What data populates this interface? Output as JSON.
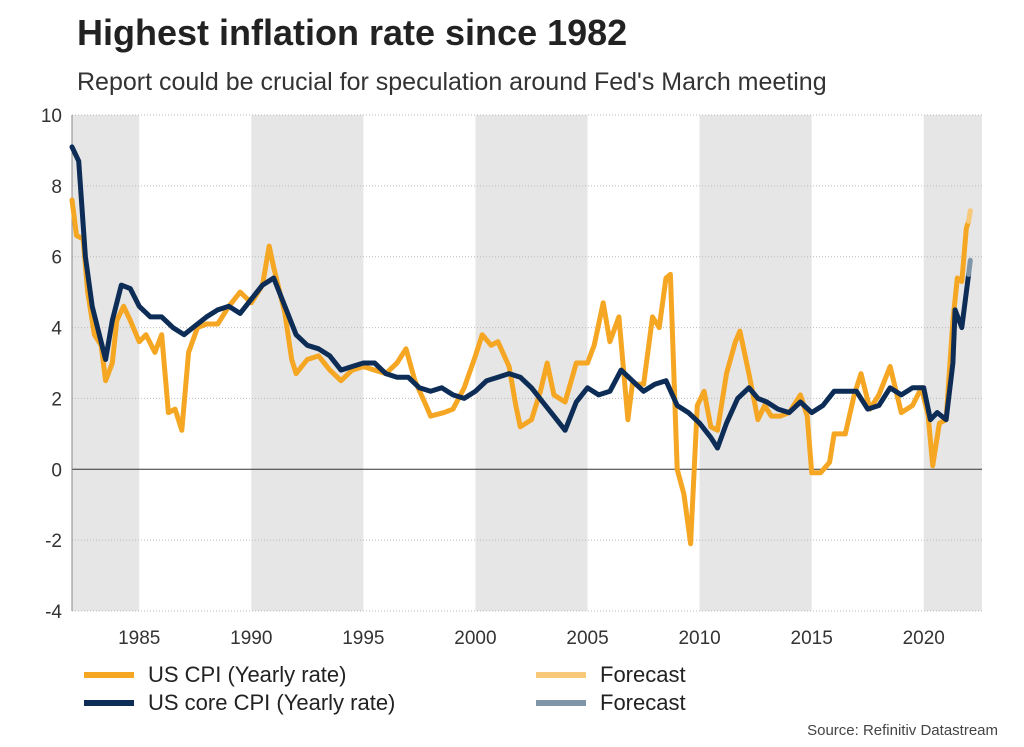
{
  "title": "Highest inflation rate since 1982",
  "subtitle": "Report could be crucial for speculation around Fed's March meeting",
  "source": "Source: Refinitiv Datastream",
  "colors": {
    "cpi": "#f5a623",
    "cpi_forecast": "#f8c979",
    "core": "#0d2d57",
    "core_forecast": "#7f96a8",
    "shade": "#e6e6e6",
    "zero_line": "#333333",
    "grid": "#bbbbbb"
  },
  "legend": [
    {
      "label": "US CPI (Yearly rate)",
      "color_key": "cpi"
    },
    {
      "label": "Forecast",
      "color_key": "cpi_forecast"
    },
    {
      "label": "US core CPI (Yearly rate)",
      "color_key": "core"
    },
    {
      "label": "Forecast",
      "color_key": "core_forecast"
    }
  ],
  "chart_data": {
    "type": "line",
    "xlim": [
      1982.0,
      2022.6
    ],
    "ylim": [
      -4,
      10
    ],
    "x_ticks": [
      1985,
      1990,
      1995,
      2000,
      2005,
      2010,
      2015,
      2020
    ],
    "x_tick_labels": [
      "1985",
      "1990",
      "1995",
      "2000",
      "2005",
      "2010",
      "2015",
      "2020"
    ],
    "y_ticks": [
      -4,
      -2,
      0,
      2,
      4,
      6,
      8,
      10
    ],
    "y_tick_labels": [
      "-4",
      "-2",
      "0",
      "2",
      "4",
      "6",
      "8",
      "10"
    ],
    "shaded_bands": [
      [
        1982.0,
        1985.0
      ],
      [
        1990.0,
        1995.0
      ],
      [
        2000.0,
        2005.0
      ],
      [
        2010.0,
        2015.0
      ],
      [
        2020.0,
        2022.6
      ]
    ],
    "grid": true,
    "series": [
      {
        "name": "US CPI (Yearly rate)",
        "color_key": "cpi",
        "width": 5,
        "points": [
          [
            1982.0,
            7.6
          ],
          [
            1982.2,
            6.6
          ],
          [
            1982.5,
            6.5
          ],
          [
            1982.7,
            5.0
          ],
          [
            1983.0,
            3.8
          ],
          [
            1983.3,
            3.5
          ],
          [
            1983.5,
            2.5
          ],
          [
            1983.8,
            3.0
          ],
          [
            1984.0,
            4.2
          ],
          [
            1984.3,
            4.6
          ],
          [
            1984.6,
            4.2
          ],
          [
            1985.0,
            3.6
          ],
          [
            1985.3,
            3.8
          ],
          [
            1985.7,
            3.3
          ],
          [
            1986.0,
            3.8
          ],
          [
            1986.3,
            1.6
          ],
          [
            1986.6,
            1.7
          ],
          [
            1986.9,
            1.1
          ],
          [
            1987.2,
            3.3
          ],
          [
            1987.6,
            4.0
          ],
          [
            1988.0,
            4.1
          ],
          [
            1988.5,
            4.1
          ],
          [
            1989.0,
            4.6
          ],
          [
            1989.5,
            5.0
          ],
          [
            1990.0,
            4.7
          ],
          [
            1990.5,
            5.2
          ],
          [
            1990.8,
            6.3
          ],
          [
            1991.0,
            5.7
          ],
          [
            1991.5,
            4.4
          ],
          [
            1991.8,
            3.1
          ],
          [
            1992.0,
            2.7
          ],
          [
            1992.5,
            3.1
          ],
          [
            1993.0,
            3.2
          ],
          [
            1993.5,
            2.8
          ],
          [
            1994.0,
            2.5
          ],
          [
            1994.5,
            2.8
          ],
          [
            1995.0,
            2.9
          ],
          [
            1995.5,
            2.8
          ],
          [
            1996.0,
            2.7
          ],
          [
            1996.5,
            3.0
          ],
          [
            1996.9,
            3.4
          ],
          [
            1997.3,
            2.5
          ],
          [
            1997.8,
            1.8
          ],
          [
            1998.0,
            1.5
          ],
          [
            1998.6,
            1.6
          ],
          [
            1999.0,
            1.7
          ],
          [
            1999.5,
            2.3
          ],
          [
            2000.0,
            3.2
          ],
          [
            2000.3,
            3.8
          ],
          [
            2000.7,
            3.5
          ],
          [
            2001.0,
            3.6
          ],
          [
            2001.5,
            2.9
          ],
          [
            2001.8,
            1.8
          ],
          [
            2002.0,
            1.2
          ],
          [
            2002.5,
            1.4
          ],
          [
            2002.9,
            2.2
          ],
          [
            2003.2,
            3.0
          ],
          [
            2003.5,
            2.1
          ],
          [
            2004.0,
            1.9
          ],
          [
            2004.5,
            3.0
          ],
          [
            2005.0,
            3.0
          ],
          [
            2005.3,
            3.5
          ],
          [
            2005.7,
            4.7
          ],
          [
            2006.0,
            3.6
          ],
          [
            2006.4,
            4.3
          ],
          [
            2006.8,
            1.4
          ],
          [
            2007.0,
            2.4
          ],
          [
            2007.5,
            2.4
          ],
          [
            2007.9,
            4.3
          ],
          [
            2008.2,
            4.0
          ],
          [
            2008.5,
            5.4
          ],
          [
            2008.7,
            5.5
          ],
          [
            2009.0,
            0.0
          ],
          [
            2009.3,
            -0.7
          ],
          [
            2009.6,
            -2.1
          ],
          [
            2009.9,
            1.8
          ],
          [
            2010.2,
            2.2
          ],
          [
            2010.5,
            1.2
          ],
          [
            2010.8,
            1.1
          ],
          [
            2011.2,
            2.7
          ],
          [
            2011.6,
            3.6
          ],
          [
            2011.8,
            3.9
          ],
          [
            2012.2,
            2.7
          ],
          [
            2012.6,
            1.4
          ],
          [
            2012.9,
            1.8
          ],
          [
            2013.2,
            1.5
          ],
          [
            2013.6,
            1.5
          ],
          [
            2014.0,
            1.6
          ],
          [
            2014.5,
            2.1
          ],
          [
            2014.8,
            1.5
          ],
          [
            2015.0,
            -0.1
          ],
          [
            2015.4,
            -0.1
          ],
          [
            2015.8,
            0.2
          ],
          [
            2016.0,
            1.0
          ],
          [
            2016.5,
            1.0
          ],
          [
            2016.9,
            2.1
          ],
          [
            2017.2,
            2.7
          ],
          [
            2017.6,
            1.7
          ],
          [
            2018.0,
            2.1
          ],
          [
            2018.5,
            2.9
          ],
          [
            2019.0,
            1.6
          ],
          [
            2019.5,
            1.8
          ],
          [
            2019.9,
            2.3
          ],
          [
            2020.2,
            1.5
          ],
          [
            2020.4,
            0.1
          ],
          [
            2020.7,
            1.3
          ],
          [
            2021.0,
            1.4
          ],
          [
            2021.3,
            4.2
          ],
          [
            2021.5,
            5.4
          ],
          [
            2021.7,
            5.3
          ],
          [
            2021.9,
            6.8
          ],
          [
            2022.0,
            7.0
          ]
        ]
      },
      {
        "name": "Forecast",
        "color_key": "cpi_forecast",
        "width": 5,
        "points": [
          [
            2022.0,
            7.0
          ],
          [
            2022.08,
            7.3
          ]
        ]
      },
      {
        "name": "US core CPI (Yearly rate)",
        "color_key": "core",
        "width": 5,
        "points": [
          [
            1982.0,
            9.1
          ],
          [
            1982.3,
            8.7
          ],
          [
            1982.6,
            6.0
          ],
          [
            1982.9,
            4.6
          ],
          [
            1983.3,
            3.6
          ],
          [
            1983.5,
            3.1
          ],
          [
            1983.8,
            4.2
          ],
          [
            1984.2,
            5.2
          ],
          [
            1984.6,
            5.1
          ],
          [
            1985.0,
            4.6
          ],
          [
            1985.5,
            4.3
          ],
          [
            1986.0,
            4.3
          ],
          [
            1986.5,
            4.0
          ],
          [
            1987.0,
            3.8
          ],
          [
            1987.4,
            4.0
          ],
          [
            1988.0,
            4.3
          ],
          [
            1988.5,
            4.5
          ],
          [
            1989.0,
            4.6
          ],
          [
            1989.5,
            4.4
          ],
          [
            1990.0,
            4.8
          ],
          [
            1990.5,
            5.2
          ],
          [
            1991.0,
            5.4
          ],
          [
            1991.5,
            4.6
          ],
          [
            1992.0,
            3.8
          ],
          [
            1992.5,
            3.5
          ],
          [
            1993.0,
            3.4
          ],
          [
            1993.5,
            3.2
          ],
          [
            1994.0,
            2.8
          ],
          [
            1994.5,
            2.9
          ],
          [
            1995.0,
            3.0
          ],
          [
            1995.5,
            3.0
          ],
          [
            1996.0,
            2.7
          ],
          [
            1996.5,
            2.6
          ],
          [
            1997.0,
            2.6
          ],
          [
            1997.5,
            2.3
          ],
          [
            1998.0,
            2.2
          ],
          [
            1998.5,
            2.3
          ],
          [
            1999.0,
            2.1
          ],
          [
            1999.5,
            2.0
          ],
          [
            2000.0,
            2.2
          ],
          [
            2000.5,
            2.5
          ],
          [
            2001.0,
            2.6
          ],
          [
            2001.5,
            2.7
          ],
          [
            2002.0,
            2.6
          ],
          [
            2002.5,
            2.3
          ],
          [
            2003.0,
            1.9
          ],
          [
            2003.5,
            1.5
          ],
          [
            2004.0,
            1.1
          ],
          [
            2004.5,
            1.9
          ],
          [
            2005.0,
            2.3
          ],
          [
            2005.5,
            2.1
          ],
          [
            2006.0,
            2.2
          ],
          [
            2006.5,
            2.8
          ],
          [
            2007.0,
            2.5
          ],
          [
            2007.5,
            2.2
          ],
          [
            2008.0,
            2.4
          ],
          [
            2008.5,
            2.5
          ],
          [
            2009.0,
            1.8
          ],
          [
            2009.5,
            1.6
          ],
          [
            2010.0,
            1.3
          ],
          [
            2010.5,
            0.9
          ],
          [
            2010.8,
            0.6
          ],
          [
            2011.2,
            1.3
          ],
          [
            2011.7,
            2.0
          ],
          [
            2012.2,
            2.3
          ],
          [
            2012.6,
            2.0
          ],
          [
            2013.0,
            1.9
          ],
          [
            2013.5,
            1.7
          ],
          [
            2014.0,
            1.6
          ],
          [
            2014.5,
            1.9
          ],
          [
            2015.0,
            1.6
          ],
          [
            2015.5,
            1.8
          ],
          [
            2016.0,
            2.2
          ],
          [
            2016.5,
            2.2
          ],
          [
            2017.0,
            2.2
          ],
          [
            2017.5,
            1.7
          ],
          [
            2018.0,
            1.8
          ],
          [
            2018.5,
            2.3
          ],
          [
            2019.0,
            2.1
          ],
          [
            2019.5,
            2.3
          ],
          [
            2020.0,
            2.3
          ],
          [
            2020.3,
            1.4
          ],
          [
            2020.6,
            1.6
          ],
          [
            2021.0,
            1.4
          ],
          [
            2021.3,
            3.0
          ],
          [
            2021.4,
            4.5
          ],
          [
            2021.7,
            4.0
          ],
          [
            2022.0,
            5.5
          ]
        ]
      },
      {
        "name": "Forecast",
        "color_key": "core_forecast",
        "width": 5,
        "points": [
          [
            2022.0,
            5.5
          ],
          [
            2022.08,
            5.9
          ]
        ]
      }
    ]
  }
}
